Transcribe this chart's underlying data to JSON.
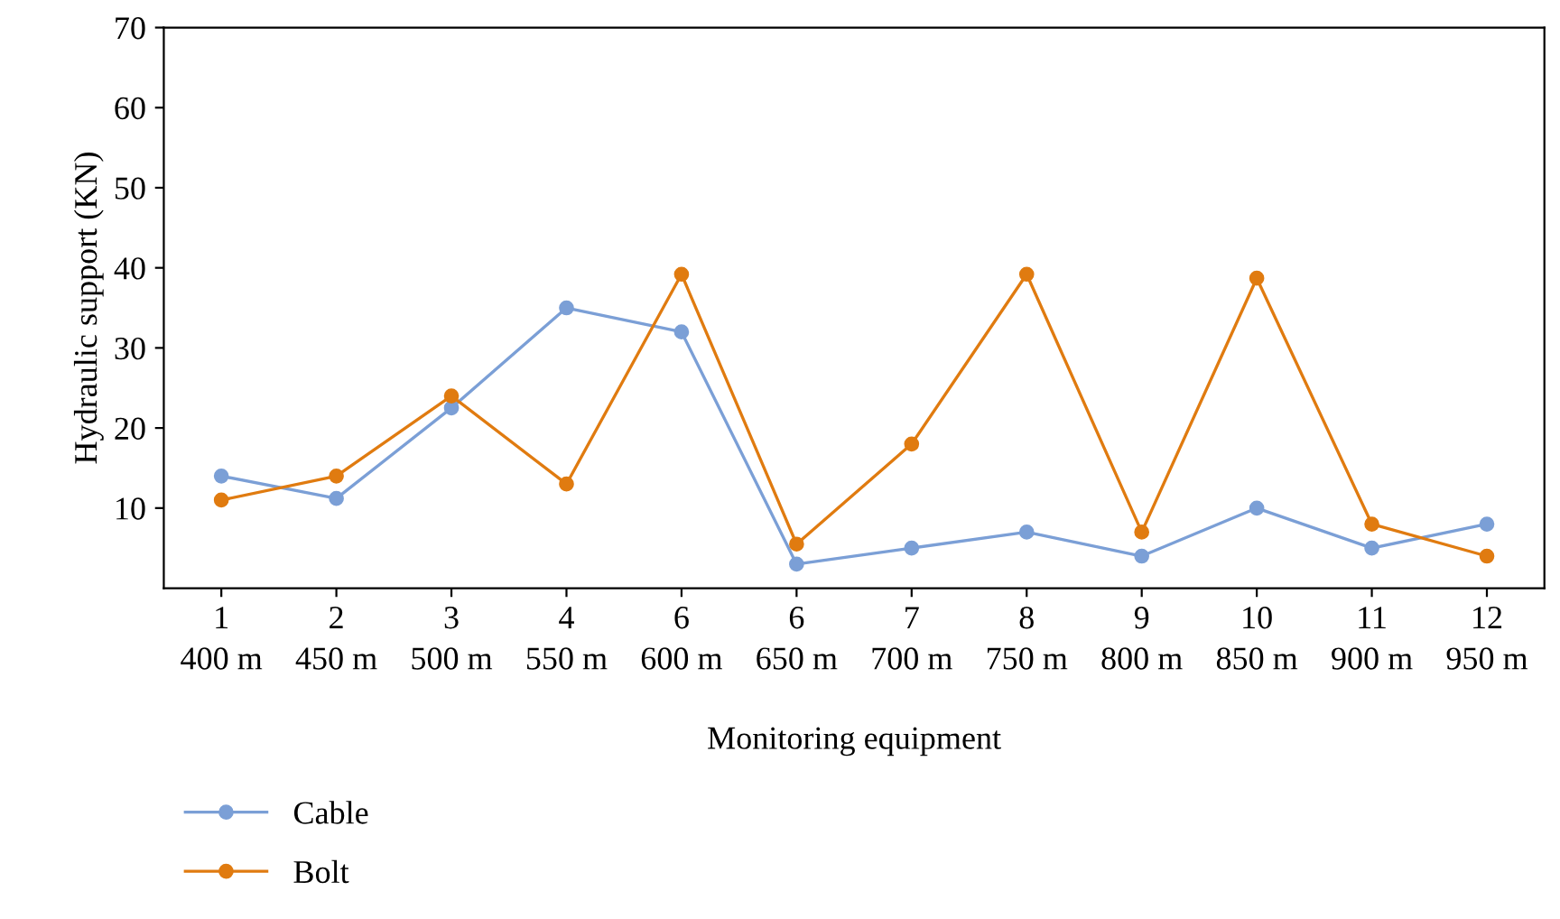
{
  "chart_data": {
    "type": "line",
    "xlabel": "Monitoring equipment",
    "ylabel": "Hydraulic support (KN)",
    "categories": [
      "1\n400 m",
      "2\n450 m",
      "3\n500 m",
      "4\n550 m",
      "6\n600 m",
      "6\n650 m",
      "7\n700 m",
      "8\n750 m",
      "9\n800 m",
      "10\n850 m",
      "11\n900 m",
      "12\n950 m"
    ],
    "series": [
      {
        "name": "Cable",
        "color": "#7b9fd6",
        "values": [
          14,
          11.2,
          22.5,
          35,
          32,
          3,
          5,
          7,
          4,
          10,
          5,
          8
        ]
      },
      {
        "name": "Bolt",
        "color": "#e07b10",
        "values": [
          11,
          14,
          24,
          13,
          39.2,
          5.5,
          18,
          39.2,
          7,
          38.7,
          8,
          4
        ]
      }
    ],
    "ylim": [
      0,
      70
    ],
    "yticks": [
      10,
      20,
      30,
      40,
      50,
      60,
      70
    ],
    "grid": false,
    "legend": "bottom left",
    "marker": "circle",
    "line_style": "solid"
  }
}
